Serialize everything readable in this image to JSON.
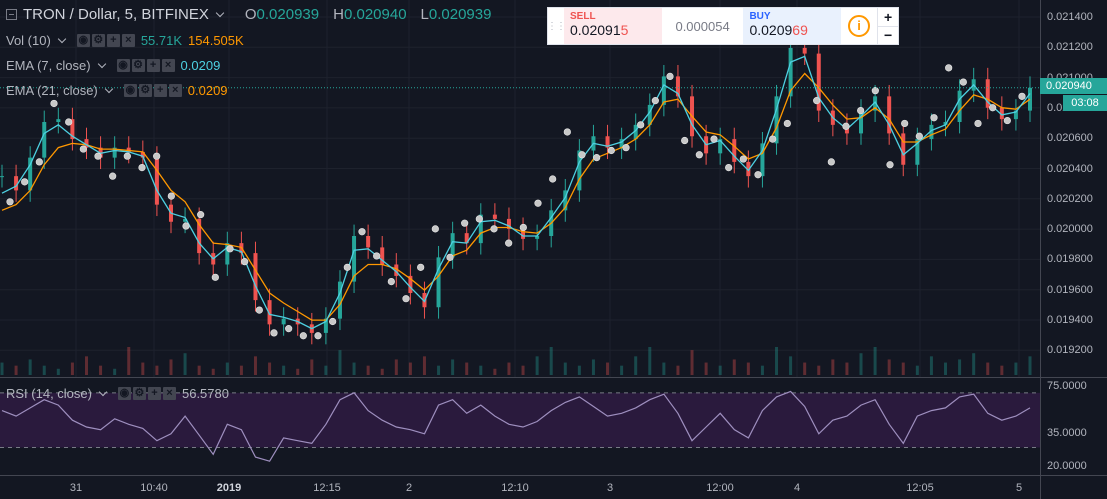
{
  "header": {
    "symbol_title": "TRON / Dollar, 5, BITFINEX",
    "ohlc": [
      {
        "label": "O",
        "value": "0.020939"
      },
      {
        "label": "H",
        "value": "0.020940"
      },
      {
        "label": "L",
        "value": "0.020939"
      }
    ]
  },
  "studies": {
    "volume": {
      "name": "Vol (10)",
      "value_a": "55.71K",
      "value_b": "154.505K"
    },
    "ema7": {
      "name": "EMA (7, close)",
      "value": "0.0209"
    },
    "ema21": {
      "name": "EMA (21, close)",
      "value": "0.0209"
    },
    "rsi": {
      "name": "RSI (14, close)",
      "value": "56.5780"
    }
  },
  "trade_widget": {
    "sell_label": "SELL",
    "sell_price_main": "0.02091",
    "sell_price_highlight": "5",
    "spread": "0.000054",
    "buy_label": "BUY",
    "buy_price_main": "0.0209",
    "buy_price_highlight": "69",
    "info_icon": "i",
    "zoom_in": "+",
    "zoom_out": "−"
  },
  "price_axis": {
    "ticks": [
      "0.021400",
      "0.021200",
      "0.021000",
      "0.020800",
      "0.020600",
      "0.020400",
      "0.020200",
      "0.020000",
      "0.019800",
      "0.019600",
      "0.019400",
      "0.019200"
    ],
    "last_price_tag": "0.020940",
    "countdown": "03:08"
  },
  "rsi_axis": {
    "ticks": [
      "75.0000",
      "35.0000",
      "20.0000"
    ]
  },
  "time_axis": {
    "ticks": [
      {
        "label": "31",
        "bold": false
      },
      {
        "label": "10:40",
        "bold": false
      },
      {
        "label": "2019",
        "bold": true
      },
      {
        "label": "12:15",
        "bold": false
      },
      {
        "label": "2",
        "bold": false
      },
      {
        "label": "12:10",
        "bold": false
      },
      {
        "label": "3",
        "bold": false
      },
      {
        "label": "12:00",
        "bold": false
      },
      {
        "label": "4",
        "bold": false
      },
      {
        "label": "12:05",
        "bold": false
      },
      {
        "label": "5",
        "bold": false
      }
    ]
  },
  "colors": {
    "background": "#131722",
    "up": "#26a69a",
    "down": "#ef5350",
    "ema7": "#4dd0e1",
    "ema21": "#ff9800",
    "rsi_line": "#9e8fbf",
    "rsi_band": "#2a1a3d",
    "grid": "#1e222d"
  },
  "chart_data": {
    "type": "line",
    "price_ylim": [
      0.0191,
      0.0215
    ],
    "rsi_ylim": [
      20,
      80
    ],
    "rsi_band": [
      35,
      75
    ],
    "close": [
      0.02032,
      0.02022,
      0.02045,
      0.0207,
      0.02072,
      0.02058,
      0.02052,
      0.02045,
      0.02052,
      0.02049,
      0.02045,
      0.02012,
      0.02,
      0.02002,
      0.01978,
      0.0197,
      0.01985,
      0.01978,
      0.01945,
      0.01928,
      0.01932,
      0.01928,
      0.01922,
      0.01932,
      0.01958,
      0.0199,
      0.01982,
      0.0197,
      0.01962,
      0.0195,
      0.0194,
      0.01975,
      0.01992,
      0.01985,
      0.02005,
      0.02002,
      0.01995,
      0.01988,
      0.0199,
      0.02008,
      0.02022,
      0.0205,
      0.0206,
      0.02052,
      0.02058,
      0.02068,
      0.02082,
      0.02102,
      0.02088,
      0.0206,
      0.02048,
      0.02058,
      0.02042,
      0.02032,
      0.02055,
      0.02088,
      0.02122,
      0.02118,
      0.02078,
      0.02068,
      0.02062,
      0.02078,
      0.02088,
      0.02062,
      0.0204,
      0.02058,
      0.02068,
      0.0207,
      0.02092,
      0.021,
      0.0208,
      0.02072,
      0.02078,
      0.02094
    ],
    "ema7": [
      0.0202,
      0.02025,
      0.0204,
      0.02062,
      0.02068,
      0.0206,
      0.02054,
      0.02048,
      0.0205,
      0.02049,
      0.02046,
      0.02022,
      0.02006,
      0.02003,
      0.01985,
      0.01974,
      0.01982,
      0.01979,
      0.01955,
      0.01935,
      0.01933,
      0.0193,
      0.01925,
      0.0193,
      0.0195,
      0.0198,
      0.01981,
      0.01973,
      0.01965,
      0.01954,
      0.01944,
      0.01967,
      0.01986,
      0.01985,
      0.02,
      0.02001,
      0.01997,
      0.0199,
      0.0199,
      0.02003,
      0.02017,
      0.02042,
      0.02055,
      0.02053,
      0.02056,
      0.02064,
      0.02077,
      0.02096,
      0.0209,
      0.02068,
      0.02054,
      0.02057,
      0.02046,
      0.02036,
      0.0205,
      0.02079,
      0.02112,
      0.02116,
      0.02087,
      0.02073,
      0.02065,
      0.02074,
      0.02084,
      0.02068,
      0.02047,
      0.02055,
      0.02064,
      0.02068,
      0.02086,
      0.02096,
      0.02084,
      0.02075,
      0.02077,
      0.0209
    ],
    "ema21": [
      0.02008,
      0.02012,
      0.02022,
      0.0204,
      0.02052,
      0.02055,
      0.02054,
      0.02051,
      0.02051,
      0.0205,
      0.02049,
      0.02036,
      0.02022,
      0.02014,
      0.01998,
      0.01985,
      0.01984,
      0.01982,
      0.01966,
      0.0195,
      0.01943,
      0.01937,
      0.01931,
      0.01931,
      0.01942,
      0.01962,
      0.0197,
      0.0197,
      0.01967,
      0.0196,
      0.01952,
      0.01962,
      0.01976,
      0.0198,
      0.01992,
      0.01996,
      0.01996,
      0.01993,
      0.01992,
      0.01999,
      0.0201,
      0.0203,
      0.02044,
      0.02048,
      0.02052,
      0.02058,
      0.02068,
      0.02084,
      0.02086,
      0.02074,
      0.02063,
      0.02061,
      0.02053,
      0.02044,
      0.02048,
      0.02066,
      0.02092,
      0.02104,
      0.02094,
      0.02082,
      0.02072,
      0.02073,
      0.0208,
      0.02072,
      0.02056,
      0.02056,
      0.02061,
      0.02065,
      0.02078,
      0.02089,
      0.02086,
      0.0208,
      0.02079,
      0.02086
    ],
    "markers": [
      0.02014,
      0.02028,
      0.02042,
      0.02083,
      0.0207,
      0.02051,
      0.02046,
      0.02032,
      0.02046,
      0.02038,
      0.02046,
      0.02018,
      0.01997,
      0.02005,
      0.01961,
      0.01981,
      0.01972,
      0.01938,
      0.01922,
      0.01925,
      0.0192,
      0.0192,
      0.0193,
      0.01968,
      0.01993,
      0.01976,
      0.01958,
      0.01946,
      0.01968,
      0.01995,
      0.01975,
      0.01999,
      0.02002,
      0.01995,
      0.01985,
      0.01996,
      0.02013,
      0.0203,
      0.02063,
      0.02047,
      0.02045,
      0.0205,
      0.02052,
      0.02068,
      0.02085,
      0.02102,
      0.02057,
      0.02047,
      0.02058,
      0.02038,
      0.02044,
      0.02033,
      0.02058,
      0.02069,
      0.0214,
      0.02085,
      0.02042,
      0.02067,
      0.02078,
      0.02092,
      0.0204,
      0.02069,
      0.0206,
      0.02073,
      0.02108,
      0.02098,
      0.02069,
      0.0208,
      0.02071,
      0.02088
    ],
    "volume": [
      4,
      3,
      5,
      3,
      2,
      4,
      6,
      3,
      2,
      9,
      4,
      3,
      5,
      7,
      3,
      2,
      4,
      3,
      6,
      4,
      3,
      2,
      5,
      3,
      8,
      4,
      3,
      2,
      5,
      4,
      6,
      3,
      5,
      4,
      3,
      2,
      4,
      3,
      6,
      9,
      4,
      3,
      5,
      4,
      3,
      6,
      9,
      4,
      3,
      8,
      4,
      3,
      5,
      4,
      3,
      9,
      6,
      4,
      3,
      5,
      4,
      7,
      9,
      5,
      4,
      3,
      6,
      4,
      5,
      7,
      4,
      3,
      4,
      6
    ],
    "rsi": [
      62,
      58,
      64,
      70,
      66,
      55,
      50,
      48,
      56,
      52,
      49,
      40,
      45,
      58,
      44,
      30,
      52,
      48,
      28,
      25,
      42,
      40,
      38,
      52,
      70,
      75,
      62,
      55,
      50,
      48,
      45,
      66,
      70,
      60,
      66,
      58,
      52,
      50,
      54,
      62,
      68,
      72,
      65,
      58,
      60,
      64,
      70,
      74,
      60,
      40,
      50,
      60,
      48,
      42,
      62,
      72,
      76,
      65,
      45,
      55,
      58,
      66,
      70,
      52,
      38,
      58,
      62,
      64,
      72,
      74,
      60,
      55,
      58,
      64
    ]
  }
}
